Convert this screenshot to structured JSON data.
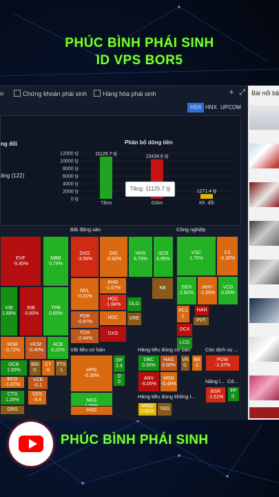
{
  "banner": {
    "line1": "PHÚC BÌNH PHÁI SINH",
    "line2": "ID VPS BOR5"
  },
  "footer": {
    "text": "PHÚC BÌNH PHÁI SINH"
  },
  "tabs": [
    {
      "label": "u"
    },
    {
      "label": "Chứng khoán phái sinh"
    },
    {
      "label": "Hàng hóa phái sinh"
    }
  ],
  "top_icons": {
    "add": "+",
    "expand": "⤢"
  },
  "exchanges": [
    "HSX",
    "HNX",
    "UPCOM"
  ],
  "exchange_selected": "HSX",
  "panel": {
    "left_title": "ng đổi",
    "left_item": "ăng (122)",
    "chart_title": "Phân bổ dòng tiền"
  },
  "tooltip": "Tăng: 11125.7 tỷ",
  "colors": {
    "up": "#1fa51f",
    "down": "#c41414",
    "flat": "#e0b400",
    "bg": "#141b2a"
  },
  "chart_data": {
    "type": "bar",
    "title": "Phân bổ dòng tiền",
    "categories": [
      "Tăng",
      "Giảm",
      "Kh. đổi"
    ],
    "values": [
      11125.7,
      10434.6,
      1271.4
    ],
    "value_labels": [
      "11125.7 tỷ",
      "10434.6 tỷ",
      "1271.4 tỷ"
    ],
    "yticks": [
      "12000 tỷ",
      "10000 tỷ",
      "8000 tỷ",
      "6000 tỷ",
      "4000 tỷ",
      "2000 tỷ",
      "0 tỷ"
    ],
    "ylim": [
      0,
      12000
    ],
    "colors": [
      "#1fa51f",
      "#c41414",
      "#e0b400"
    ]
  },
  "sections": {
    "bds": "Bất động sản",
    "cn": "Công nghiệp",
    "vlcb": "Vật liệu cơ bản",
    "htdcb": "Hàng tiêu dùng cơ bản",
    "cdv": "Các dịch vụ ...",
    "htdk": "Hàng tiêu dùng không t...",
    "nang": "Năng l...",
    "co": "Cô..."
  },
  "heatmap": [
    {
      "t": "EVF",
      "p": "-5.45%"
    },
    {
      "t": "MBB",
      "p": "0.74%"
    },
    {
      "t": "VIB",
      "p": "1.89%"
    },
    {
      "t": "EIB",
      "p": "-3.85%"
    },
    {
      "t": "TPB",
      "p": "0.65%"
    },
    {
      "t": "MSB",
      "p": "-0.72%"
    },
    {
      "t": "HCM",
      "p": "-0.40%"
    },
    {
      "t": "ACB",
      "p": "0.22%"
    },
    {
      "t": "OCB",
      "p": "1.55%"
    },
    {
      "t": "BID",
      "p": "0."
    },
    {
      "t": "CT",
      "p": "-0."
    },
    {
      "t": "FTS",
      "p": "-1."
    },
    {
      "t": "BCG",
      "p": "-1.67%"
    },
    {
      "t": "VCB",
      "p": "-0.1"
    },
    {
      "t": "CTG",
      "p": "1.26%"
    },
    {
      "t": "VDS",
      "p": "-3.4"
    },
    {
      "t": "ORS",
      "p": ""
    },
    {
      "t": "DXG",
      "p": "-3.59%"
    },
    {
      "t": "DIG",
      "p": "-0.92%"
    },
    {
      "t": "HHS",
      "p": "6.73%"
    },
    {
      "t": "SCR",
      "p": "6.95%"
    },
    {
      "t": "NVL",
      "p": "-0.31%"
    },
    {
      "t": "KHG",
      "p": "-1.67%"
    },
    {
      "t": "HQC",
      "p": "-1.84%"
    },
    {
      "t": "PDR",
      "p": "-0.97%"
    },
    {
      "t": "HDC",
      "p": ""
    },
    {
      "t": "TCH",
      "p": "-2.44%"
    },
    {
      "t": "DXS",
      "p": ""
    },
    {
      "t": "DLG",
      "p": ""
    },
    {
      "t": "VRE",
      "p": ""
    },
    {
      "t": "KB",
      "p": ""
    },
    {
      "t": "VSC",
      "p": "1.75%"
    },
    {
      "t": "CII",
      "p": "-0.30%"
    },
    {
      "t": "GEX",
      "p": "2.82%"
    },
    {
      "t": "HHV",
      "p": "-1.59%"
    },
    {
      "t": "VCG",
      "p": "0.00%"
    },
    {
      "t": "HAH",
      "p": ""
    },
    {
      "t": "PC1",
      "p": "2."
    },
    {
      "t": "PVT",
      "p": ""
    },
    {
      "t": "DC4",
      "p": ""
    },
    {
      "t": "LCG",
      "p": ""
    },
    {
      "t": "HPG",
      "p": "-0.39%"
    },
    {
      "t": "DP",
      "p": "2.4"
    },
    {
      "t": "D",
      "p": "0"
    },
    {
      "t": "NKG",
      "p": "1.56%"
    },
    {
      "t": "HSG",
      "p": ""
    },
    {
      "t": "DBC",
      "p": "0.30%"
    },
    {
      "t": "HAG",
      "p": "0.00%"
    },
    {
      "t": "VN",
      "p": "0."
    },
    {
      "t": "BA",
      "p": "-2."
    },
    {
      "t": "ANV",
      "p": "-6.05%"
    },
    {
      "t": "MSN",
      "p": "-0.48%"
    },
    {
      "t": "MWG",
      "p": "0.60%"
    },
    {
      "t": "YEG",
      "p": ""
    },
    {
      "t": "POW",
      "p": "-1.37%"
    },
    {
      "t": "BSR",
      "p": "-1.51%"
    },
    {
      "t": "FP",
      "p": "0."
    }
  ],
  "sidebar": {
    "title": "Bài nổi bật"
  }
}
